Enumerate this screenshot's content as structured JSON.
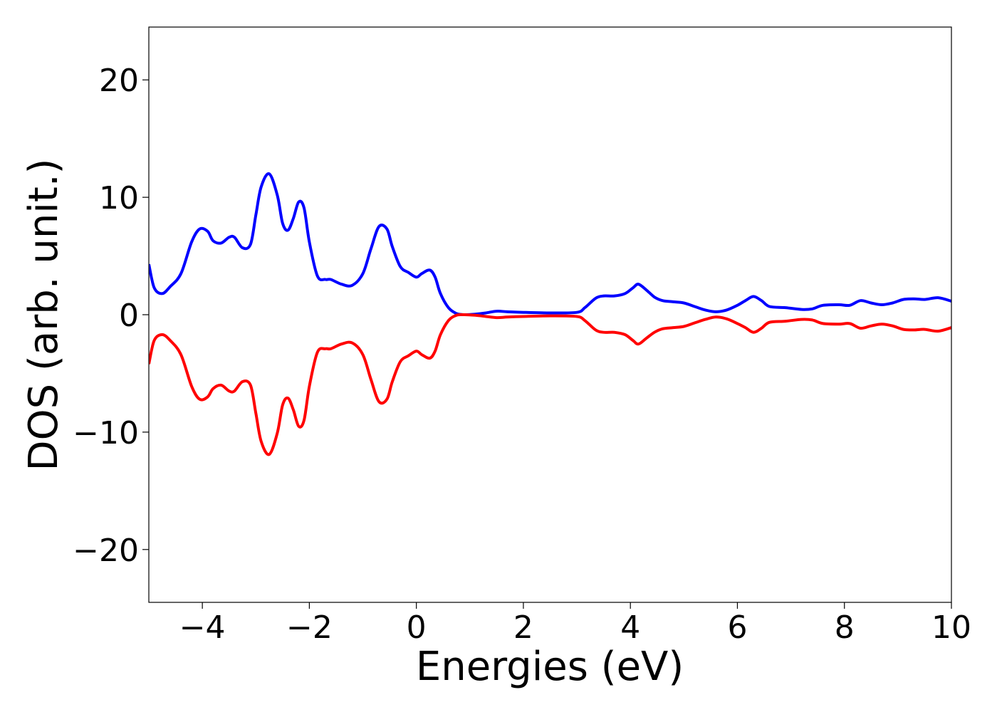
{
  "chart_data": {
    "type": "line",
    "title": "",
    "xlabel": "Energies (eV)",
    "ylabel": "DOS (arb. unit.)",
    "xlim": [
      -5,
      10
    ],
    "ylim": [
      -24.5,
      24.5
    ],
    "xticks": [
      -4,
      -2,
      0,
      2,
      4,
      6,
      8,
      10
    ],
    "yticks": [
      -20,
      -10,
      0,
      10,
      20
    ],
    "xtick_labels": [
      "−4",
      "−2",
      "0",
      "2",
      "4",
      "6",
      "8",
      "10"
    ],
    "ytick_labels": [
      "−20",
      "−10",
      "0",
      "10",
      "20"
    ],
    "grid": false,
    "legend": "none",
    "series": [
      {
        "color": "#0000ff",
        "x": [
          -5.0,
          -4.9,
          -4.75,
          -4.6,
          -4.4,
          -4.2,
          -4.05,
          -3.9,
          -3.8,
          -3.65,
          -3.5,
          -3.4,
          -3.25,
          -3.1,
          -3.0,
          -2.9,
          -2.75,
          -2.6,
          -2.5,
          -2.4,
          -2.3,
          -2.2,
          -2.1,
          -2.0,
          -1.85,
          -1.7,
          -1.6,
          -1.4,
          -1.2,
          -1.0,
          -0.85,
          -0.7,
          -0.55,
          -0.45,
          -0.3,
          -0.15,
          0.0,
          0.1,
          0.25,
          0.35,
          0.45,
          0.6,
          0.75,
          0.9,
          1.1,
          1.3,
          1.5,
          1.7,
          2.0,
          2.5,
          3.0,
          3.15,
          3.35,
          3.5,
          3.7,
          3.9,
          4.05,
          4.15,
          4.3,
          4.45,
          4.6,
          4.8,
          5.0,
          5.2,
          5.4,
          5.6,
          5.8,
          6.0,
          6.15,
          6.3,
          6.45,
          6.6,
          6.9,
          7.2,
          7.4,
          7.6,
          7.9,
          8.1,
          8.3,
          8.5,
          8.7,
          8.9,
          9.1,
          9.3,
          9.5,
          9.75,
          10.0
        ],
        "y": [
          4.3,
          2.3,
          1.8,
          2.4,
          3.5,
          6.2,
          7.3,
          7.1,
          6.3,
          6.1,
          6.6,
          6.6,
          5.7,
          6.0,
          8.5,
          10.9,
          12.0,
          10.2,
          7.8,
          7.2,
          8.2,
          9.6,
          9.1,
          6.2,
          3.3,
          3.0,
          3.0,
          2.6,
          2.5,
          3.5,
          5.6,
          7.5,
          7.3,
          5.8,
          4.1,
          3.6,
          3.2,
          3.5,
          3.8,
          3.2,
          1.8,
          0.6,
          0.1,
          0.0,
          0.05,
          0.15,
          0.3,
          0.25,
          0.2,
          0.15,
          0.2,
          0.6,
          1.4,
          1.6,
          1.6,
          1.8,
          2.3,
          2.6,
          2.1,
          1.5,
          1.2,
          1.1,
          1.0,
          0.7,
          0.4,
          0.25,
          0.4,
          0.8,
          1.2,
          1.55,
          1.2,
          0.7,
          0.6,
          0.45,
          0.5,
          0.8,
          0.85,
          0.8,
          1.2,
          1.0,
          0.85,
          1.0,
          1.3,
          1.35,
          1.3,
          1.45,
          1.15
        ]
      },
      {
        "color": "#ff0000",
        "x": [
          -5.0,
          -4.9,
          -4.75,
          -4.6,
          -4.4,
          -4.2,
          -4.05,
          -3.9,
          -3.8,
          -3.65,
          -3.5,
          -3.4,
          -3.25,
          -3.1,
          -3.0,
          -2.9,
          -2.75,
          -2.6,
          -2.5,
          -2.4,
          -2.3,
          -2.2,
          -2.1,
          -2.0,
          -1.85,
          -1.7,
          -1.6,
          -1.4,
          -1.2,
          -1.0,
          -0.85,
          -0.7,
          -0.55,
          -0.45,
          -0.3,
          -0.15,
          0.0,
          0.1,
          0.25,
          0.35,
          0.45,
          0.6,
          0.75,
          0.9,
          1.1,
          1.3,
          1.5,
          1.7,
          2.0,
          2.5,
          3.0,
          3.15,
          3.35,
          3.5,
          3.7,
          3.9,
          4.05,
          4.15,
          4.3,
          4.45,
          4.6,
          4.8,
          5.0,
          5.2,
          5.4,
          5.6,
          5.8,
          6.0,
          6.15,
          6.3,
          6.45,
          6.6,
          6.9,
          7.2,
          7.4,
          7.6,
          7.9,
          8.1,
          8.3,
          8.5,
          8.7,
          8.9,
          9.1,
          9.3,
          9.5,
          9.75,
          10.0
        ],
        "y": [
          -4.2,
          -2.2,
          -1.7,
          -2.2,
          -3.4,
          -6.1,
          -7.2,
          -7.0,
          -6.3,
          -6.0,
          -6.5,
          -6.5,
          -5.7,
          -6.0,
          -8.4,
          -10.8,
          -11.9,
          -10.1,
          -7.7,
          -7.1,
          -8.1,
          -9.5,
          -9.0,
          -6.1,
          -3.2,
          -2.9,
          -2.9,
          -2.5,
          -2.4,
          -3.4,
          -5.5,
          -7.4,
          -7.2,
          -5.7,
          -4.0,
          -3.5,
          -3.1,
          -3.4,
          -3.7,
          -3.1,
          -1.7,
          -0.5,
          -0.05,
          0.0,
          -0.05,
          -0.15,
          -0.25,
          -0.2,
          -0.15,
          -0.1,
          -0.15,
          -0.5,
          -1.3,
          -1.5,
          -1.5,
          -1.7,
          -2.2,
          -2.5,
          -2.0,
          -1.5,
          -1.2,
          -1.1,
          -1.0,
          -0.7,
          -0.4,
          -0.2,
          -0.35,
          -0.75,
          -1.1,
          -1.5,
          -1.15,
          -0.65,
          -0.55,
          -0.4,
          -0.45,
          -0.75,
          -0.8,
          -0.75,
          -1.15,
          -0.95,
          -0.8,
          -0.95,
          -1.25,
          -1.3,
          -1.25,
          -1.4,
          -1.1
        ]
      }
    ]
  }
}
